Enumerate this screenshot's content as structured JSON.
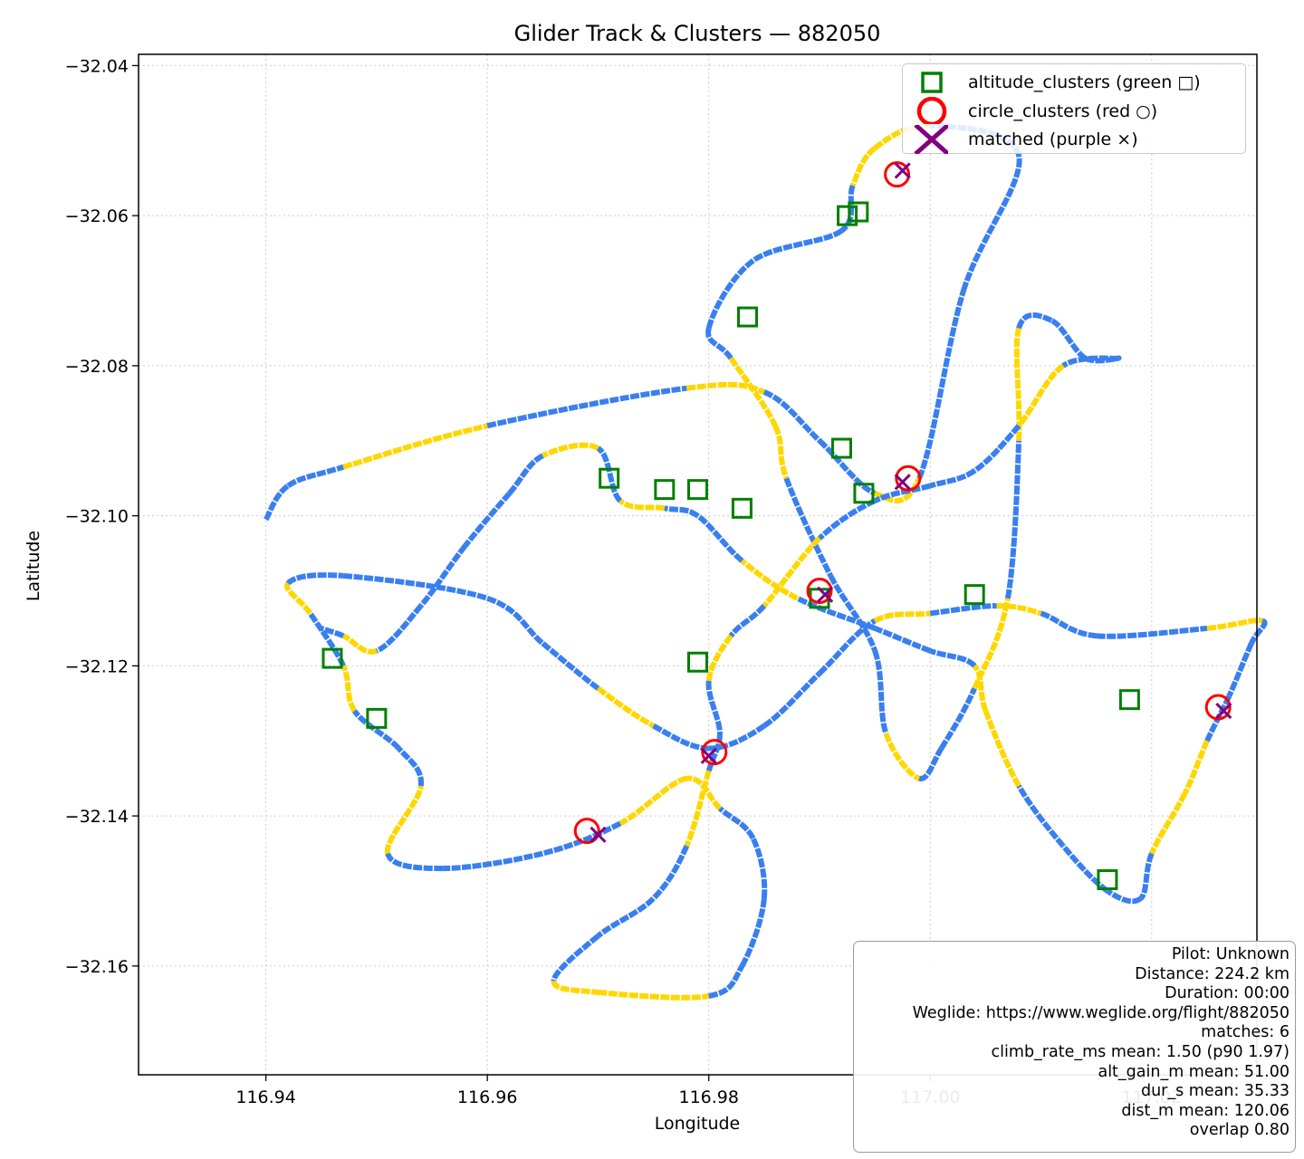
{
  "chart_data": {
    "type": "scatter",
    "title": "Glider Track & Clusters — 882050",
    "xlabel": "Longitude",
    "ylabel": "Latitude",
    "xlim": [
      116.9285,
      117.0295
    ],
    "ylim": [
      -32.1745,
      -32.0385
    ],
    "xticks": [
      "116.94",
      "116.96",
      "116.98",
      "117.00",
      "117.02"
    ],
    "yticks": [
      "−32.04",
      "−32.06",
      "−32.08",
      "−32.10",
      "−32.12",
      "−32.14",
      "−32.16"
    ],
    "grid": true,
    "legend_position": "upper right",
    "legend": [
      {
        "label": "altitude_clusters (green □)",
        "marker": "square",
        "color": "#008000"
      },
      {
        "label": "circle_clusters (red ○)",
        "marker": "circle",
        "color": "#ff0000"
      },
      {
        "label": "matched (purple ×)",
        "marker": "x",
        "color": "#800080"
      }
    ],
    "track_colors": {
      "climb": "#ffd700",
      "glide": "#3a7ff0"
    },
    "track": [
      [
        116.94,
        -32.1005
      ],
      [
        116.942,
        -32.096
      ],
      [
        116.947,
        -32.0935
      ],
      [
        116.96,
        -32.088
      ],
      [
        116.978,
        -32.083
      ],
      [
        116.985,
        -32.0835
      ],
      [
        116.99,
        -32.09
      ],
      [
        116.995,
        -32.097
      ],
      [
        116.999,
        -32.095
      ],
      [
        117.003,
        -32.07
      ],
      [
        117.008,
        -32.052
      ],
      [
        117.0,
        -32.048
      ],
      [
        116.995,
        -32.051
      ],
      [
        116.993,
        -32.056
      ],
      [
        116.992,
        -32.062
      ],
      [
        116.984,
        -32.066
      ],
      [
        116.98,
        -32.075
      ],
      [
        116.982,
        -32.079
      ],
      [
        116.986,
        -32.088
      ],
      [
        116.987,
        -32.095
      ],
      [
        116.991,
        -32.108
      ],
      [
        116.995,
        -32.118
      ],
      [
        116.996,
        -32.129
      ],
      [
        116.999,
        -32.135
      ],
      [
        117.001,
        -32.131
      ],
      [
        117.004,
        -32.123
      ],
      [
        117.007,
        -32.111
      ],
      [
        117.008,
        -32.09
      ],
      [
        117.008,
        -32.075
      ],
      [
        117.011,
        -32.074
      ],
      [
        117.014,
        -32.079
      ],
      [
        117.017,
        -32.079
      ],
      [
        117.012,
        -32.08
      ],
      [
        117.008,
        -32.088
      ],
      [
        117.004,
        -32.094
      ],
      [
        117.0,
        -32.096
      ],
      [
        116.995,
        -32.098
      ],
      [
        116.99,
        -32.103
      ],
      [
        116.985,
        -32.112
      ],
      [
        116.982,
        -32.116
      ],
      [
        116.98,
        -32.122
      ],
      [
        116.981,
        -32.129
      ],
      [
        116.98,
        -32.134
      ],
      [
        116.978,
        -32.144
      ],
      [
        116.975,
        -32.151
      ],
      [
        116.97,
        -32.156
      ],
      [
        116.966,
        -32.162
      ],
      [
        116.97,
        -32.1635
      ],
      [
        116.98,
        -32.164
      ],
      [
        116.983,
        -32.16
      ],
      [
        116.985,
        -32.151
      ],
      [
        116.984,
        -32.143
      ],
      [
        116.981,
        -32.139
      ],
      [
        116.978,
        -32.135
      ],
      [
        116.972,
        -32.141
      ],
      [
        116.965,
        -32.145
      ],
      [
        116.956,
        -32.147
      ],
      [
        116.951,
        -32.145
      ],
      [
        116.954,
        -32.136
      ],
      [
        116.952,
        -32.131
      ],
      [
        116.948,
        -32.126
      ],
      [
        116.947,
        -32.12
      ],
      [
        116.944,
        -32.113
      ],
      [
        116.942,
        -32.109
      ],
      [
        116.947,
        -32.108
      ],
      [
        116.96,
        -32.111
      ],
      [
        116.965,
        -32.117
      ],
      [
        116.97,
        -32.123
      ],
      [
        116.975,
        -32.128
      ],
      [
        116.98,
        -32.131
      ],
      [
        116.985,
        -32.128
      ],
      [
        116.99,
        -32.121
      ],
      [
        116.995,
        -32.114
      ],
      [
        117.0,
        -32.113
      ],
      [
        117.006,
        -32.112
      ],
      [
        117.01,
        -32.113
      ],
      [
        117.015,
        -32.116
      ],
      [
        117.025,
        -32.115
      ],
      [
        117.03,
        -32.114
      ],
      [
        117.029,
        -32.117
      ],
      [
        117.027,
        -32.124
      ],
      [
        117.025,
        -32.13
      ],
      [
        117.023,
        -32.137
      ],
      [
        117.02,
        -32.145
      ],
      [
        117.019,
        -32.151
      ],
      [
        117.016,
        -32.15
      ],
      [
        117.012,
        -32.144
      ],
      [
        117.008,
        -32.136
      ],
      [
        117.005,
        -32.126
      ],
      [
        117.004,
        -32.12
      ],
      [
        117.0,
        -32.118
      ],
      [
        116.995,
        -32.115
      ],
      [
        116.988,
        -32.111
      ],
      [
        116.983,
        -32.106
      ],
      [
        116.979,
        -32.1
      ],
      [
        116.976,
        -32.099
      ],
      [
        116.972,
        -32.098
      ],
      [
        116.97,
        -32.091
      ],
      [
        116.965,
        -32.092
      ],
      [
        116.962,
        -32.097
      ],
      [
        116.958,
        -32.104
      ],
      [
        116.954,
        -32.112
      ],
      [
        116.95,
        -32.118
      ],
      [
        116.947,
        -32.116
      ],
      [
        116.945,
        -32.115
      ]
    ],
    "altitude_clusters": [
      [
        116.9925,
        -32.06
      ],
      [
        116.9935,
        -32.0595
      ],
      [
        116.9835,
        -32.0735
      ],
      [
        116.992,
        -32.091
      ],
      [
        116.971,
        -32.095
      ],
      [
        116.976,
        -32.0965
      ],
      [
        116.979,
        -32.0965
      ],
      [
        116.983,
        -32.099
      ],
      [
        116.994,
        -32.097
      ],
      [
        116.979,
        -32.1195
      ],
      [
        116.946,
        -32.119
      ],
      [
        116.99,
        -32.111
      ],
      [
        117.004,
        -32.1105
      ],
      [
        117.018,
        -32.1245
      ],
      [
        117.016,
        -32.1485
      ],
      [
        116.95,
        -32.127
      ]
    ],
    "circle_clusters": [
      [
        116.997,
        -32.0545
      ],
      [
        116.9805,
        -32.1315
      ],
      [
        117.026,
        -32.1255
      ],
      [
        116.998,
        -32.095
      ],
      [
        116.99,
        -32.11
      ],
      [
        116.969,
        -32.142
      ]
    ],
    "matched": [
      [
        116.9975,
        -32.054
      ],
      [
        116.98,
        -32.132
      ],
      [
        117.0265,
        -32.126
      ],
      [
        116.9975,
        -32.0955
      ],
      [
        116.9905,
        -32.1105
      ],
      [
        116.97,
        -32.1425
      ]
    ]
  },
  "infobox": {
    "lines": [
      "Pilot: Unknown",
      "Distance: 224.2 km",
      "Duration: 00:00",
      "Weglide: https://www.weglide.org/flight/882050",
      "matches: 6",
      "climb_rate_ms mean: 1.50 (p90 1.97)",
      "alt_gain_m mean: 51.00",
      "dur_s mean: 35.33",
      "dist_m mean: 120.06",
      "overlap 0.80"
    ]
  }
}
